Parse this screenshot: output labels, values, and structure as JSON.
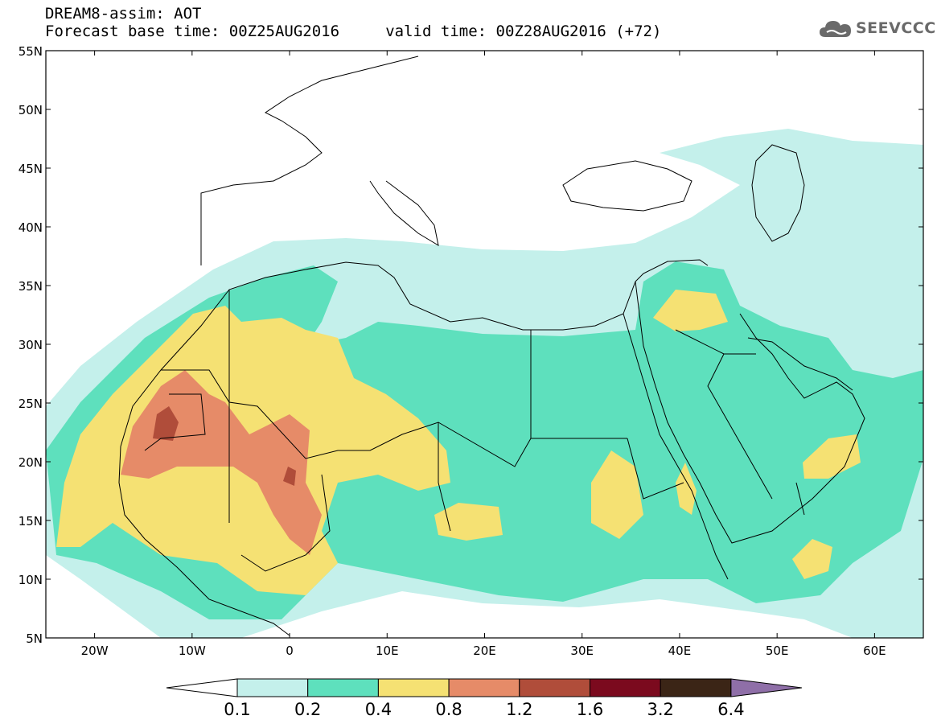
{
  "header": {
    "line1": "DREAM8-assim: AOT",
    "line2": "Forecast base time: 00Z25AUG2016     valid time: 00Z28AUG2016 (+72)"
  },
  "logo": {
    "text": "SEEVCCC",
    "icon": "cloud-logo-icon"
  },
  "map": {
    "lat_ticks": [
      "55N",
      "50N",
      "45N",
      "40N",
      "35N",
      "30N",
      "25N",
      "20N",
      "15N",
      "10N",
      "5N"
    ],
    "lon_ticks": [
      "20W",
      "10W",
      "0",
      "10E",
      "20E",
      "30E",
      "40E",
      "50E",
      "60E"
    ],
    "lat_range": [
      5,
      55
    ],
    "lon_range": [
      -25,
      65
    ]
  },
  "colorbar": {
    "labels": [
      "0.1",
      "0.2",
      "0.4",
      "0.8",
      "1.2",
      "1.6",
      "3.2",
      "6.4"
    ],
    "colors": [
      "#ffffff",
      "#c4f0eb",
      "#5ee0bd",
      "#f5e173",
      "#e68b68",
      "#b04d3a",
      "#7b0a1e",
      "#3b2516",
      "#8f6fa8"
    ]
  },
  "palette": {
    "land": "#ffffff",
    "border": "#000000"
  }
}
